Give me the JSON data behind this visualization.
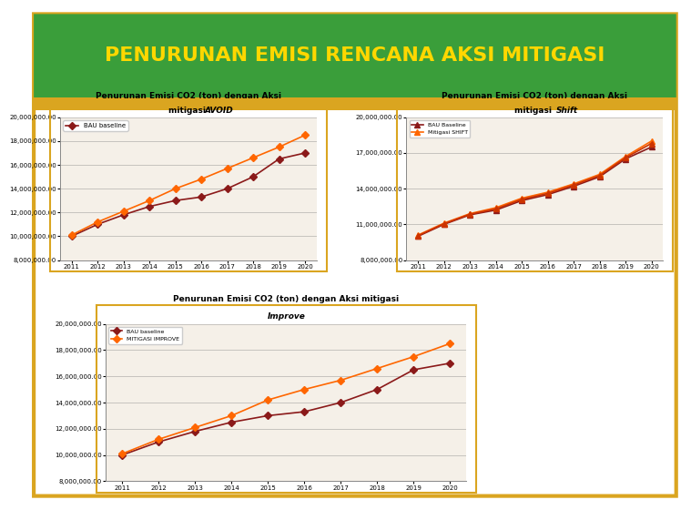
{
  "years": [
    2011,
    2012,
    2013,
    2014,
    2015,
    2016,
    2017,
    2018,
    2019,
    2020
  ],
  "bau_avoid": [
    10000000,
    11000000,
    11800000,
    12500000,
    13000000,
    13300000,
    14000000,
    15000000,
    16500000,
    17000000
  ],
  "mitigasi_avoid": [
    10100000,
    11200000,
    12100000,
    13000000,
    14000000,
    14800000,
    15700000,
    16600000,
    17500000,
    18500000
  ],
  "bau_shift": [
    10000000,
    11000000,
    11800000,
    12200000,
    13000000,
    13500000,
    14200000,
    15000000,
    16500000,
    17500000
  ],
  "mitigasi_shift": [
    10100000,
    11100000,
    11900000,
    12400000,
    13200000,
    13700000,
    14400000,
    15200000,
    16700000,
    18000000
  ],
  "mitigasi_shift2": [
    10050000,
    11050000,
    11850000,
    12300000,
    13100000,
    13600000,
    14300000,
    15100000,
    16600000,
    17800000
  ],
  "bau_improve": [
    10000000,
    11000000,
    11800000,
    12500000,
    13000000,
    13300000,
    14000000,
    15000000,
    16500000,
    17000000
  ],
  "mitigasi_improve": [
    10100000,
    11200000,
    12100000,
    13000000,
    14200000,
    15000000,
    15700000,
    16600000,
    17500000,
    18500000
  ],
  "title_avoid": "Penurunan Emisi CO2 (ton) dengan Aksi\nmitigasi AVOID",
  "title_shift": "Penurunan Emisi CO2 (ton) dengan Aksi\nmitigasi Shift",
  "title_improve": "Penurunan Emisi CO2 (ton) dengan Aksi mitigasi\nImprove",
  "legend_bau": "BAU baseline",
  "legend_bau_shift": "BAU Baseline",
  "legend_mitigasi_shift": "Mitigasi SHIFT",
  "legend_bau_improve": "BAU baseline",
  "legend_mitigasi_improve": "MITIGASI IMPROVE",
  "header_title": "PENURUNAN EMISI RENCANA AKSI MITIGASI",
  "header_bg": "#3a9e3a",
  "header_text_color": "#FFD700",
  "border_color": "#DAA520",
  "plot_bg": "#F5F0E8",
  "bau_color": "#8B1A1A",
  "mitigasi_color": "#FF6600",
  "avoid_italic": true,
  "shift_italic": true,
  "improve_italic": true,
  "ylim_avoid": [
    8000000,
    20000000
  ],
  "yticks_avoid": [
    8000000,
    10000000,
    12000000,
    14000000,
    16000000,
    18000000,
    20000000
  ],
  "ylim_shift": [
    8000000,
    20000000
  ],
  "yticks_shift": [
    8000000,
    11000000,
    14000000,
    17000000,
    20000000
  ],
  "ylim_improve": [
    8000000,
    20000000
  ],
  "yticks_improve": [
    8000000,
    10000000,
    12000000,
    14000000,
    16000000,
    18000000,
    20000000
  ]
}
